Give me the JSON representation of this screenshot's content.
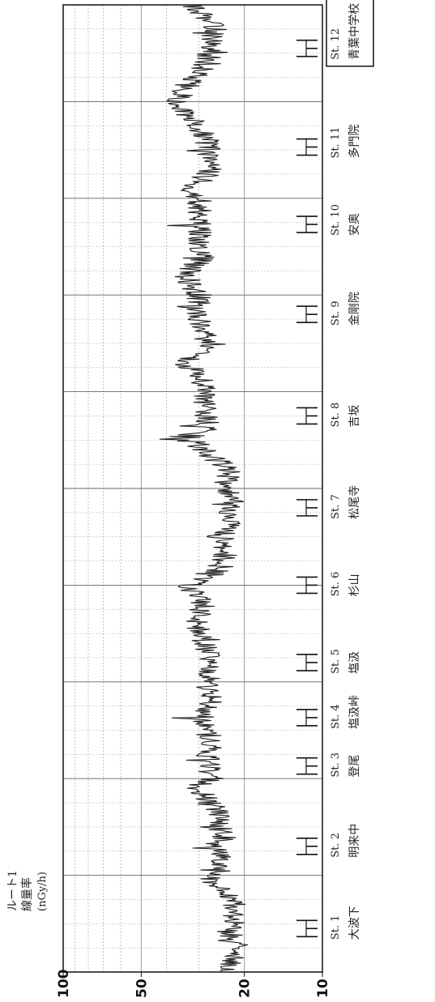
{
  "chart_data": {
    "type": "line",
    "orientation": "rotated-90-ccw",
    "title": "ルート1",
    "ylabel": "線量率",
    "yunit": "(nGy/h)",
    "yscale": "log",
    "ylim": [
      10,
      100
    ],
    "yticks": [
      "100",
      "50",
      "20",
      "10"
    ],
    "grid": true,
    "stations": [
      {
        "id": "St. 1",
        "name": "大波下"
      },
      {
        "id": "St. 2",
        "name": "明来中"
      },
      {
        "id": "St. 3",
        "name": "登尾"
      },
      {
        "id": "St. 4",
        "name": "塩汲峠"
      },
      {
        "id": "St. 5",
        "name": "塩汲"
      },
      {
        "id": "St. 6",
        "name": "杉山"
      },
      {
        "id": "St. 7",
        "name": "松尾寺"
      },
      {
        "id": "St. 8",
        "name": "吉坂"
      },
      {
        "id": "St. 9",
        "name": "金剛院"
      },
      {
        "id": "St. 10",
        "name": "安奥"
      },
      {
        "id": "St. 11",
        "name": "多門院"
      },
      {
        "id": "St. 12",
        "name": "青葉中学校"
      }
    ],
    "series": [
      {
        "color": "#222222",
        "profile": [
          [
            0,
            24
          ],
          [
            2,
            21
          ],
          [
            4,
            23
          ],
          [
            6,
            22
          ],
          [
            8,
            22.5
          ],
          [
            9,
            27
          ],
          [
            10,
            25
          ],
          [
            12,
            25
          ],
          [
            13,
            26
          ],
          [
            14,
            24
          ],
          [
            16,
            25
          ],
          [
            18,
            28
          ],
          [
            19,
            31
          ],
          [
            20,
            27
          ],
          [
            22,
            28
          ],
          [
            24,
            27
          ],
          [
            26,
            29
          ],
          [
            28,
            27
          ],
          [
            30,
            28
          ],
          [
            32,
            27
          ],
          [
            34,
            29
          ],
          [
            36,
            31
          ],
          [
            38,
            29
          ],
          [
            40,
            33
          ],
          [
            41,
            26
          ],
          [
            43,
            24
          ],
          [
            45,
            24
          ],
          [
            47,
            23
          ],
          [
            49,
            22
          ],
          [
            50,
            24
          ],
          [
            52,
            23
          ],
          [
            54,
            29
          ],
          [
            55,
            35
          ],
          [
            56,
            28
          ],
          [
            58,
            28
          ],
          [
            60,
            29
          ],
          [
            62,
            30
          ],
          [
            63,
            36
          ],
          [
            64,
            27
          ],
          [
            66,
            29
          ],
          [
            68,
            31
          ],
          [
            70,
            30
          ],
          [
            72,
            34
          ],
          [
            74,
            29
          ],
          [
            76,
            30
          ],
          [
            78,
            30
          ],
          [
            80,
            30
          ],
          [
            81,
            34
          ],
          [
            82,
            28
          ],
          [
            84,
            27
          ],
          [
            86,
            28
          ],
          [
            88,
            32
          ],
          [
            90,
            37
          ],
          [
            92,
            32
          ],
          [
            94,
            28
          ],
          [
            96,
            27
          ],
          [
            98,
            26
          ],
          [
            100,
            33
          ]
        ]
      }
    ]
  }
}
